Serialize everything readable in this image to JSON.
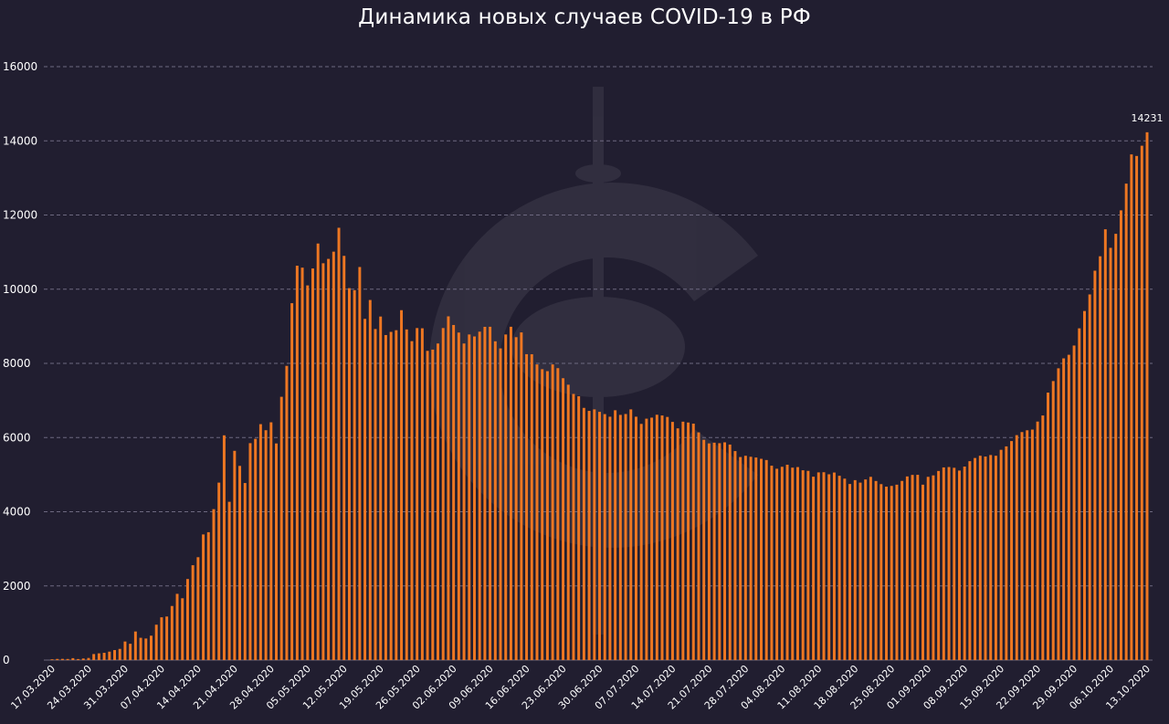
{
  "chart_data": {
    "type": "bar",
    "title": "Динамика новых случаев COVID-19 в РФ",
    "xlabel": "",
    "ylabel": "",
    "ylim": [
      0,
      16000
    ],
    "y_ticks": [
      "0",
      "2000",
      "4000",
      "6000",
      "8000",
      "10000",
      "12000",
      "14000",
      "16000"
    ],
    "grid": "horizontal dashed",
    "legend": "none",
    "bar_color": "#ee7722",
    "background_color": "#211e30",
    "x_tick_labels": [
      "17.03.2020",
      "24.03.2020",
      "31.03.2020",
      "07.04.2020",
      "14.04.2020",
      "21.04.2020",
      "28.04.2020",
      "05.05.2020",
      "12.05.2020",
      "19.05.2020",
      "26.05.2020",
      "02.06.2020",
      "09.06.2020",
      "16.06.2020",
      "23.06.2020",
      "30.06.2020",
      "07.07.2020",
      "14.07.2020",
      "21.07.2020",
      "28.07.2020",
      "04.08.2020",
      "11.08.2020",
      "18.08.2020",
      "25.08.2020",
      "01.09.2020",
      "08.09.2020",
      "15.09.2020",
      "22.09.2020",
      "29.09.2020",
      "06.10.2020",
      "13.10.2020"
    ],
    "series_start_date": "17.03.2020",
    "annotation_last": "14231",
    "values": [
      21,
      31,
      33,
      30,
      52,
      28,
      43,
      57,
      163,
      182,
      196,
      228,
      270,
      302,
      501,
      440,
      771,
      601,
      582,
      658,
      954,
      1154,
      1175,
      1459,
      1786,
      1667,
      2186,
      2558,
      2774,
      3388,
      3448,
      4070,
      4785,
      6060,
      4268,
      5642,
      5236,
      4774,
      5849,
      5966,
      6361,
      6198,
      6411,
      5841,
      7099,
      7933,
      9623,
      10633,
      10581,
      10102,
      10559,
      11231,
      10699,
      10817,
      11012,
      11656,
      10899,
      10028,
      9974,
      10598,
      9200,
      9709,
      8926,
      9263,
      8764,
      8849,
      8894,
      9434,
      8915,
      8599,
      8952,
      8946,
      8338,
      8371,
      8536,
      8952,
      9268,
      9035,
      8831,
      8536,
      8779,
      8726,
      8855,
      8985,
      8987,
      8595,
      8404,
      8779,
      8987,
      8706,
      8835,
      8248,
      8246,
      7972,
      7843,
      7790,
      7972,
      7871,
      7600,
      7425,
      7176,
      7113,
      6800,
      6719,
      6760,
      6693,
      6632,
      6562,
      6736,
      6611,
      6635,
      6760,
      6562,
      6368,
      6509,
      6537,
      6615,
      6595,
      6556,
      6422,
      6248,
      6428,
      6406,
      6375,
      6139,
      5940,
      5842,
      5862,
      5848,
      5871,
      5811,
      5635,
      5475,
      5509,
      5482,
      5462,
      5427,
      5394,
      5241,
      5159,
      5212,
      5267,
      5189,
      5204,
      5118,
      5102,
      4945,
      5061,
      5065,
      5010,
      5057,
      4969,
      4892,
      4748,
      4852,
      4785,
      4870,
      4941,
      4829,
      4744,
      4676,
      4696,
      4729,
      4831,
      4952,
      4993,
      4995,
      4729,
      4941,
      4980,
      5099,
      5195,
      5205,
      5185,
      5110,
      5218,
      5363,
      5449,
      5509,
      5488,
      5529,
      5509,
      5670,
      5762,
      5905,
      6065,
      6148,
      6196,
      6215,
      6431,
      6595,
      7212,
      7523,
      7867,
      8135,
      8232,
      8481,
      8945,
      9412,
      9859,
      10499,
      10888,
      11615,
      11115,
      11493,
      12126,
      12846,
      13634,
      13592,
      13868,
      14231
    ]
  }
}
